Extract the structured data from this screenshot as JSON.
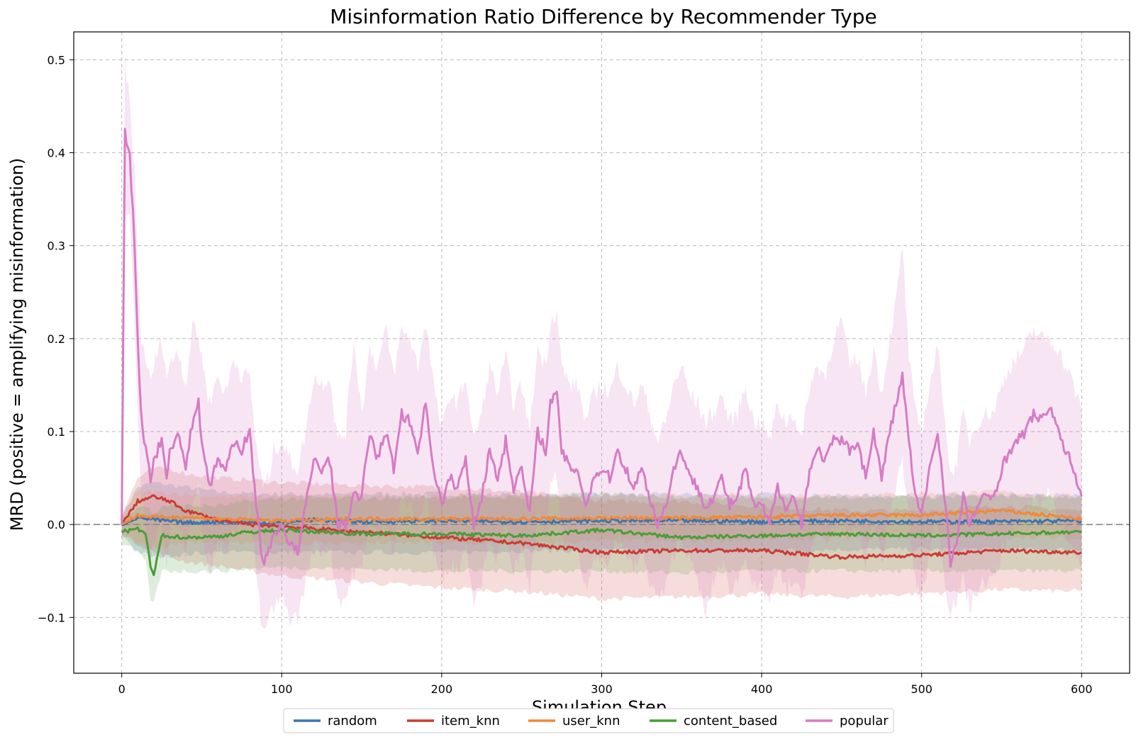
{
  "chart_data": {
    "type": "line",
    "title": "Misinformation Ratio Difference by Recommender Type",
    "xlabel": "Simulation Step",
    "ylabel": "MRD (positive = amplifying misinformation)",
    "xlim": [
      -30,
      630
    ],
    "ylim": [
      -0.16,
      0.53
    ],
    "x_ticks": [
      0,
      100,
      200,
      300,
      400,
      500,
      600
    ],
    "x_tick_labels": [
      "0",
      "100",
      "200",
      "300",
      "400",
      "500",
      "600"
    ],
    "y_ticks": [
      -0.1,
      0.0,
      0.1,
      0.2,
      0.3,
      0.4,
      0.5
    ],
    "y_tick_labels": [
      "−0.1",
      "0.0",
      "0.1",
      "0.2",
      "0.3",
      "0.4",
      "0.5"
    ],
    "grid": true,
    "reference_line_y": 0.0,
    "legend_position": "bottom-center, below axes",
    "series": [
      {
        "name": "random",
        "color": "#3a75b0",
        "x": [
          0,
          10,
          20,
          40,
          60,
          80,
          100,
          120,
          150,
          200,
          250,
          300,
          350,
          400,
          450,
          500,
          550,
          600
        ],
        "values": [
          0.0,
          0.008,
          0.005,
          0.002,
          0.003,
          0.002,
          0.002,
          0.005,
          0.003,
          0.004,
          0.003,
          0.004,
          0.004,
          0.003,
          0.004,
          0.003,
          0.003,
          0.004
        ],
        "band_lower": [
          -0.01,
          -0.03,
          -0.035,
          -0.032,
          -0.03,
          -0.03,
          -0.03,
          -0.03,
          -0.03,
          -0.03,
          -0.028,
          -0.028,
          -0.028,
          -0.028,
          -0.027,
          -0.027,
          -0.027,
          -0.027
        ],
        "band_upper": [
          0.01,
          0.04,
          0.045,
          0.04,
          0.035,
          0.033,
          0.033,
          0.032,
          0.033,
          0.033,
          0.032,
          0.032,
          0.032,
          0.032,
          0.031,
          0.031,
          0.031,
          0.031
        ]
      },
      {
        "name": "item_knn",
        "color": "#cc3b33",
        "x": [
          0,
          10,
          20,
          30,
          40,
          60,
          80,
          100,
          150,
          200,
          250,
          300,
          350,
          400,
          450,
          500,
          550,
          600
        ],
        "values": [
          0.0,
          0.025,
          0.03,
          0.025,
          0.015,
          0.005,
          0.0,
          -0.002,
          -0.008,
          -0.014,
          -0.02,
          -0.03,
          -0.028,
          -0.028,
          -0.035,
          -0.033,
          -0.028,
          -0.03
        ],
        "band_lower": [
          -0.01,
          -0.02,
          -0.03,
          -0.035,
          -0.04,
          -0.045,
          -0.05,
          -0.055,
          -0.062,
          -0.068,
          -0.072,
          -0.08,
          -0.078,
          -0.075,
          -0.078,
          -0.074,
          -0.07,
          -0.072
        ],
        "band_upper": [
          0.01,
          0.05,
          0.06,
          0.06,
          0.055,
          0.05,
          0.048,
          0.045,
          0.042,
          0.04,
          0.035,
          0.025,
          0.025,
          0.02,
          0.015,
          0.015,
          0.02,
          0.015
        ]
      },
      {
        "name": "user_knn",
        "color": "#f0883a",
        "x": [
          0,
          10,
          20,
          40,
          60,
          80,
          100,
          150,
          200,
          250,
          300,
          350,
          400,
          450,
          500,
          550,
          600
        ],
        "values": [
          0.0,
          0.01,
          0.008,
          0.008,
          0.006,
          0.005,
          0.004,
          0.006,
          0.006,
          0.006,
          0.007,
          0.007,
          0.008,
          0.01,
          0.01,
          0.015,
          0.006
        ],
        "band_lower": [
          -0.01,
          -0.02,
          -0.025,
          -0.02,
          -0.02,
          -0.02,
          -0.02,
          -0.02,
          -0.02,
          -0.02,
          -0.018,
          -0.018,
          -0.016,
          -0.015,
          -0.014,
          -0.012,
          -0.016
        ],
        "band_upper": [
          0.01,
          0.035,
          0.035,
          0.033,
          0.03,
          0.03,
          0.03,
          0.03,
          0.03,
          0.03,
          0.031,
          0.031,
          0.031,
          0.032,
          0.033,
          0.035,
          0.03
        ]
      },
      {
        "name": "content_based",
        "color": "#4a9c3a",
        "x": [
          0,
          10,
          15,
          18,
          20,
          25,
          40,
          60,
          80,
          100,
          150,
          200,
          250,
          300,
          350,
          400,
          450,
          500,
          550,
          600
        ],
        "values": [
          -0.008,
          -0.005,
          -0.01,
          -0.045,
          -0.055,
          -0.012,
          -0.014,
          -0.013,
          -0.008,
          -0.006,
          -0.01,
          -0.01,
          -0.012,
          -0.006,
          -0.014,
          -0.012,
          -0.01,
          -0.012,
          -0.01,
          -0.008
        ],
        "band_lower": [
          -0.02,
          -0.03,
          -0.04,
          -0.08,
          -0.085,
          -0.05,
          -0.05,
          -0.05,
          -0.048,
          -0.046,
          -0.048,
          -0.05,
          -0.05,
          -0.05,
          -0.052,
          -0.05,
          -0.05,
          -0.05,
          -0.05,
          -0.05
        ],
        "band_upper": [
          0.005,
          0.02,
          0.02,
          0.015,
          0.01,
          0.02,
          0.02,
          0.02,
          0.025,
          0.028,
          0.028,
          0.03,
          0.03,
          0.033,
          0.03,
          0.028,
          0.03,
          0.03,
          0.03,
          0.03
        ]
      },
      {
        "name": "popular",
        "color": "#d67bc4",
        "x": [
          0,
          2,
          5,
          8,
          10,
          12,
          15,
          18,
          20,
          25,
          28,
          30,
          35,
          40,
          45,
          48,
          50,
          55,
          60,
          65,
          70,
          75,
          80,
          83,
          88,
          92,
          95,
          100,
          105,
          110,
          115,
          120,
          125,
          130,
          135,
          140,
          145,
          150,
          155,
          160,
          165,
          170,
          175,
          180,
          185,
          190,
          195,
          200,
          205,
          210,
          215,
          220,
          225,
          230,
          235,
          240,
          245,
          250,
          255,
          260,
          265,
          268,
          272,
          275,
          280,
          285,
          290,
          295,
          300,
          305,
          310,
          315,
          320,
          325,
          330,
          335,
          340,
          345,
          350,
          355,
          360,
          365,
          370,
          375,
          380,
          385,
          390,
          395,
          400,
          405,
          410,
          415,
          420,
          425,
          430,
          435,
          440,
          445,
          450,
          455,
          460,
          465,
          470,
          475,
          480,
          484,
          488,
          492,
          496,
          500,
          505,
          510,
          515,
          518,
          522,
          526,
          530,
          535,
          540,
          545,
          550,
          555,
          560,
          565,
          570,
          575,
          580,
          585,
          590,
          595,
          600
        ],
        "values": [
          0.0,
          0.42,
          0.4,
          0.3,
          0.2,
          0.12,
          0.08,
          0.05,
          0.07,
          0.09,
          0.05,
          0.08,
          0.1,
          0.06,
          0.12,
          0.13,
          0.09,
          0.04,
          0.07,
          0.06,
          0.09,
          0.08,
          0.1,
          0.04,
          -0.04,
          -0.03,
          -0.01,
          0.0,
          -0.02,
          -0.03,
          0.02,
          0.07,
          0.06,
          0.07,
          0.0,
          0.0,
          0.03,
          0.03,
          0.1,
          0.07,
          0.1,
          0.06,
          0.12,
          0.11,
          0.08,
          0.13,
          0.06,
          0.02,
          0.05,
          0.04,
          0.07,
          0.0,
          0.03,
          0.08,
          0.05,
          0.09,
          0.04,
          0.06,
          0.01,
          0.1,
          0.08,
          0.13,
          0.14,
          0.08,
          0.06,
          0.06,
          0.02,
          0.05,
          0.06,
          0.05,
          0.08,
          0.06,
          0.04,
          0.06,
          0.03,
          0.0,
          0.02,
          0.06,
          0.08,
          0.05,
          0.04,
          0.02,
          0.03,
          0.05,
          0.02,
          0.03,
          0.06,
          0.02,
          0.02,
          0.0,
          0.04,
          0.02,
          0.03,
          0.0,
          0.06,
          0.08,
          0.07,
          0.09,
          0.09,
          0.08,
          0.09,
          0.05,
          0.1,
          0.05,
          0.1,
          0.13,
          0.16,
          0.09,
          0.03,
          0.01,
          0.06,
          0.1,
          0.02,
          -0.04,
          -0.02,
          0.03,
          0.0,
          0.02,
          0.03,
          0.03,
          0.06,
          0.08,
          0.09,
          0.1,
          0.12,
          0.11,
          0.13,
          0.1,
          0.08,
          0.06,
          0.03
        ]
      }
    ],
    "popular_band_upper": [
      0.0,
      0.5,
      0.45,
      0.38,
      0.28,
      0.2,
      0.18,
      0.15,
      0.17,
      0.2,
      0.16,
      0.17,
      0.19,
      0.15,
      0.22,
      0.2,
      0.18,
      0.13,
      0.16,
      0.14,
      0.18,
      0.16,
      0.16,
      0.1,
      0.04,
      0.05,
      0.08,
      0.09,
      0.07,
      0.06,
      0.1,
      0.16,
      0.15,
      0.16,
      0.09,
      0.1,
      0.2,
      0.12,
      0.19,
      0.17,
      0.21,
      0.16,
      0.21,
      0.2,
      0.17,
      0.22,
      0.15,
      0.1,
      0.14,
      0.13,
      0.16,
      0.09,
      0.12,
      0.17,
      0.14,
      0.18,
      0.13,
      0.15,
      0.1,
      0.19,
      0.17,
      0.22,
      0.23,
      0.17,
      0.15,
      0.15,
      0.11,
      0.14,
      0.15,
      0.14,
      0.17,
      0.15,
      0.13,
      0.15,
      0.12,
      0.09,
      0.11,
      0.15,
      0.17,
      0.14,
      0.13,
      0.11,
      0.12,
      0.14,
      0.11,
      0.12,
      0.15,
      0.11,
      0.11,
      0.09,
      0.13,
      0.11,
      0.12,
      0.09,
      0.15,
      0.17,
      0.16,
      0.2,
      0.22,
      0.17,
      0.18,
      0.14,
      0.19,
      0.14,
      0.2,
      0.24,
      0.3,
      0.18,
      0.12,
      0.1,
      0.15,
      0.19,
      0.11,
      0.05,
      0.07,
      0.12,
      0.09,
      0.11,
      0.12,
      0.12,
      0.15,
      0.17,
      0.18,
      0.19,
      0.21,
      0.2,
      0.2,
      0.19,
      0.17,
      0.15,
      0.12
    ],
    "popular_band_lower": [
      0.0,
      0.34,
      0.33,
      0.22,
      0.12,
      0.04,
      -0.01,
      -0.04,
      -0.02,
      0.0,
      -0.04,
      -0.01,
      0.01,
      -0.03,
      0.03,
      0.05,
      0.0,
      -0.05,
      -0.02,
      -0.03,
      0.0,
      -0.01,
      0.02,
      -0.03,
      -0.12,
      -0.1,
      -0.09,
      -0.08,
      -0.1,
      -0.1,
      -0.06,
      -0.02,
      -0.03,
      -0.02,
      -0.08,
      -0.08,
      -0.05,
      -0.05,
      0.01,
      -0.02,
      0.01,
      -0.03,
      0.03,
      0.02,
      -0.01,
      0.04,
      -0.03,
      -0.06,
      -0.04,
      -0.05,
      -0.02,
      -0.08,
      -0.06,
      -0.01,
      -0.04,
      0.0,
      -0.05,
      -0.03,
      -0.07,
      0.01,
      -0.01,
      0.04,
      0.05,
      -0.01,
      -0.03,
      -0.03,
      -0.07,
      -0.04,
      -0.03,
      -0.04,
      -0.01,
      -0.03,
      -0.05,
      -0.03,
      -0.06,
      -0.08,
      -0.07,
      -0.03,
      -0.01,
      -0.04,
      -0.06,
      -0.1,
      -0.06,
      -0.04,
      -0.07,
      -0.06,
      -0.03,
      -0.07,
      -0.07,
      -0.08,
      -0.05,
      -0.07,
      -0.06,
      -0.08,
      -0.03,
      -0.01,
      -0.02,
      0.0,
      0.0,
      -0.01,
      0.0,
      -0.04,
      0.01,
      -0.04,
      0.01,
      0.04,
      0.07,
      0.0,
      -0.06,
      -0.08,
      -0.03,
      0.01,
      -0.07,
      -0.09,
      -0.08,
      -0.06,
      -0.09,
      -0.07,
      -0.06,
      -0.06,
      -0.03,
      -0.01,
      0.0,
      0.01,
      0.03,
      0.02,
      0.04,
      0.01,
      -0.01,
      -0.03,
      -0.05
    ]
  }
}
